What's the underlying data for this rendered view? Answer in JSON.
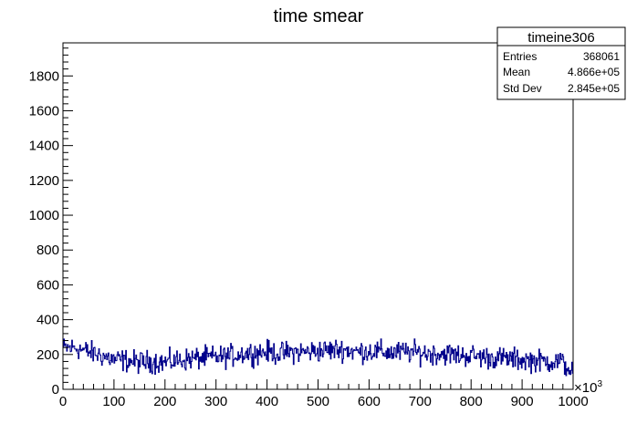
{
  "chart_data": {
    "type": "line",
    "title": "time smear",
    "xlabel": "",
    "ylabel": "",
    "xlim": [
      0,
      1000
    ],
    "ylim": [
      0,
      1990
    ],
    "x_exponent_label": "×10",
    "x_exponent_sup": "3",
    "x_ticks": [
      0,
      100,
      200,
      300,
      400,
      500,
      600,
      700,
      800,
      900,
      1000
    ],
    "x_tick_labels": [
      "0",
      "100",
      "200",
      "300",
      "400",
      "500",
      "600",
      "700",
      "800",
      "900",
      "1000"
    ],
    "y_ticks": [
      0,
      200,
      400,
      600,
      800,
      1000,
      1200,
      1400,
      1600,
      1800
    ],
    "y_tick_labels": [
      "0",
      "200",
      "400",
      "600",
      "800",
      "1000",
      "1200",
      "1400",
      "1600",
      "1800"
    ],
    "grid": false,
    "legend": "none",
    "series": [
      {
        "color": "#00008b",
        "x": [
          0,
          25,
          50,
          75,
          100,
          125,
          150,
          175,
          200,
          225,
          250,
          275,
          300,
          325,
          350,
          375,
          400,
          425,
          450,
          475,
          500,
          525,
          550,
          575,
          600,
          625,
          650,
          675,
          700,
          725,
          750,
          775,
          800,
          825,
          850,
          875,
          900,
          925,
          950,
          975,
          1000
        ],
        "values": [
          235,
          240,
          215,
          195,
          170,
          165,
          155,
          160,
          155,
          165,
          175,
          180,
          185,
          190,
          205,
          210,
          215,
          205,
          215,
          215,
          220,
          225,
          230,
          215,
          220,
          215,
          210,
          215,
          210,
          205,
          205,
          195,
          195,
          185,
          180,
          175,
          170,
          165,
          160,
          160,
          100
        ],
        "noise": 45
      }
    ],
    "stats_box": {
      "name": "timeine306",
      "rows": [
        {
          "label": "Entries",
          "value": "368061"
        },
        {
          "label": "Mean",
          "value": "4.866e+05"
        },
        {
          "label": "Std Dev",
          "value": "2.845e+05"
        }
      ]
    },
    "colors": {
      "line": "#00008b",
      "axis": "#000000",
      "background": "#ffffff"
    }
  }
}
